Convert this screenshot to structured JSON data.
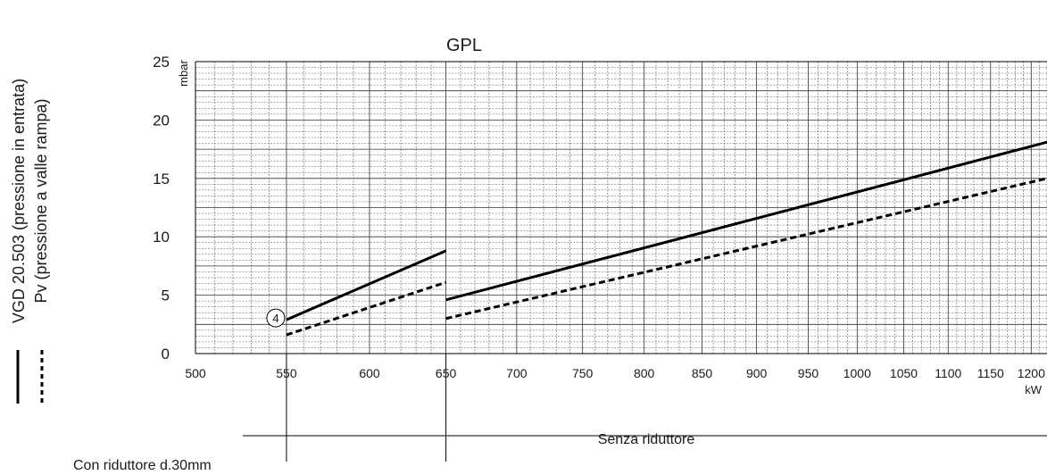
{
  "chart_data": {
    "type": "line",
    "title": "GPL",
    "ylabel": "mbar",
    "xlabel": "kW",
    "xlim": [
      500,
      1220
    ],
    "ylim": [
      0,
      25
    ],
    "x_scale": "log",
    "x_ticks": [
      500,
      550,
      600,
      650,
      700,
      750,
      800,
      850,
      900,
      950,
      1000,
      1050,
      1100,
      1150,
      1200
    ],
    "y_ticks": [
      0,
      5,
      10,
      15,
      20,
      25
    ],
    "grid": true,
    "legend_position": "left, vertical",
    "series": [
      {
        "name": "VGD 20.503 (pressione in entrata)",
        "style": "solid",
        "segments": [
          {
            "x": [
              550,
              650
            ],
            "y": [
              2.9,
              8.8
            ]
          },
          {
            "x": [
              650,
              1220
            ],
            "y": [
              4.6,
              18.1
            ]
          }
        ]
      },
      {
        "name": "Pv (pressione a valle rampa)",
        "style": "dashed",
        "segments": [
          {
            "x": [
              550,
              650
            ],
            "y": [
              1.6,
              6.1
            ]
          },
          {
            "x": [
              650,
              1220
            ],
            "y": [
              3.0,
              15.0
            ]
          }
        ]
      }
    ],
    "marker": {
      "label": "4",
      "x": 550,
      "y": 2.9
    },
    "annotations": {
      "senza": "Senza riduttore",
      "con": "Con riduttore d.30mm"
    },
    "range_markers": [
      550,
      650
    ]
  },
  "colors": {
    "line": "#000000",
    "grid_major": "#333333",
    "grid_minor": "#555555"
  }
}
